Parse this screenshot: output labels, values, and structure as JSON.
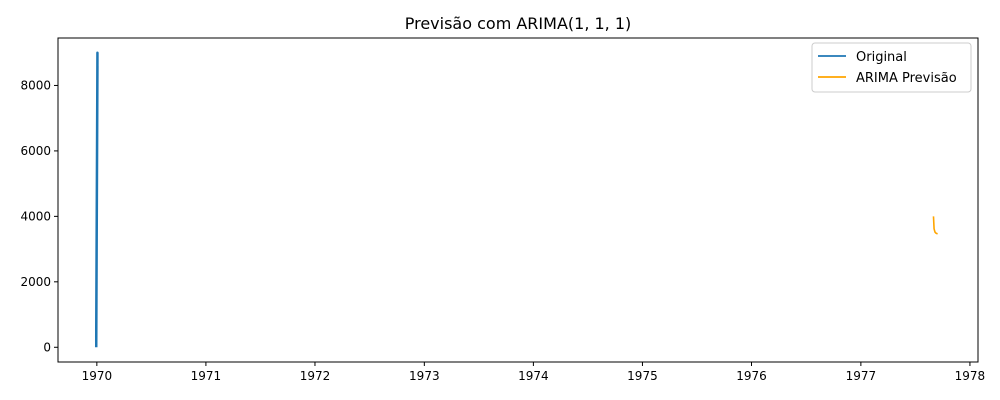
{
  "chart_data": {
    "type": "line",
    "title": "Previsão com ARIMA(1, 1, 1)",
    "xlabel": "",
    "ylabel": "",
    "x_ticks": [
      "1970",
      "1971",
      "1972",
      "1973",
      "1974",
      "1975",
      "1976",
      "1977",
      "1978"
    ],
    "y_ticks": [
      0,
      2000,
      4000,
      6000,
      8000
    ],
    "xlim": [
      "1969-08-24",
      "1978-01-28"
    ],
    "ylim": [
      -450,
      9450
    ],
    "grid": false,
    "legend": "top-right",
    "series": [
      {
        "name": "Original",
        "color": "#1f77b4",
        "x": [
          "1970-01-01",
          "1970-01-01",
          "1970-01-01",
          "1970-01-01",
          "1970-01-01",
          "1970-01-01",
          "1970-01-01",
          "1970-01-01",
          "1970-01-01",
          "1970-01-01"
        ],
        "y": [
          0,
          9000,
          150,
          8800,
          300,
          8900,
          500,
          8600,
          200,
          8950
        ]
      },
      {
        "name": "ARIMA Previsão",
        "color": "orange",
        "x": [
          "1977-09-01",
          "1977-09-03",
          "1977-09-06",
          "1977-09-09",
          "1977-09-12",
          "1977-09-15"
        ],
        "y": [
          4000,
          3620,
          3520,
          3490,
          3475,
          3470
        ]
      }
    ]
  }
}
